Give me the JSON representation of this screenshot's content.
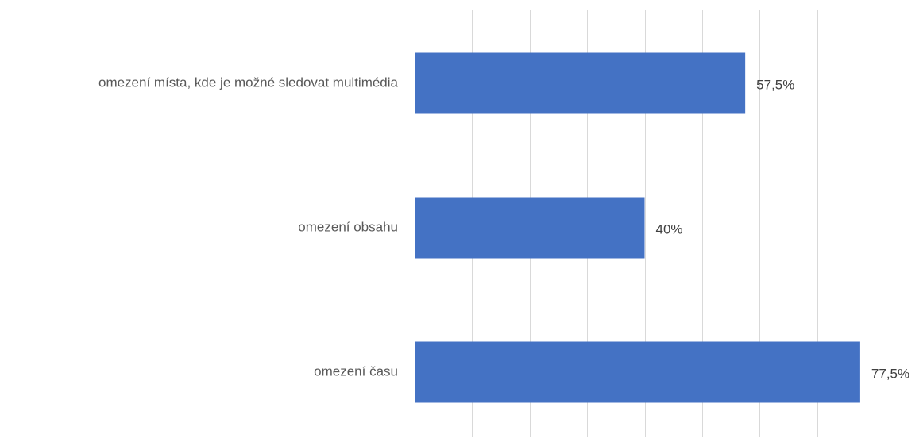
{
  "chart_data": {
    "type": "bar",
    "orientation": "horizontal",
    "categories": [
      "omezení místa, kde je možné sledovat multimédia",
      "omezení obsahu",
      "omezení času"
    ],
    "values": [
      57.5,
      40,
      77.5
    ],
    "value_labels": [
      "57,5%",
      "40%",
      "77,5%"
    ],
    "unit": "%",
    "xlim": [
      0,
      80
    ],
    "x_grid_step": 10,
    "grid": true,
    "legend": "none",
    "bar_color": "#4472C4",
    "grid_color": "#D9D9D9"
  }
}
